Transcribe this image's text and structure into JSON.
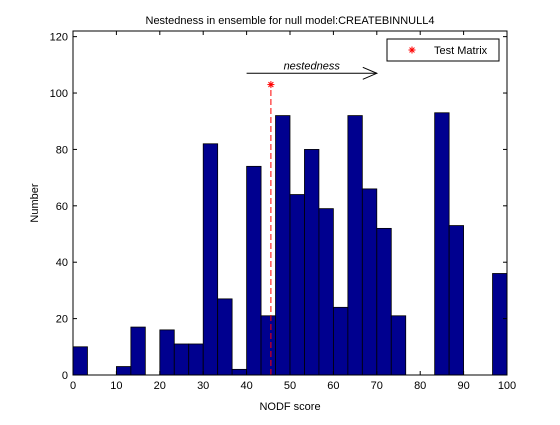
{
  "chart_data": {
    "type": "bar",
    "title": "Nestedness in ensemble for null model:CREATEBINNULL4",
    "xlabel": "NODF score",
    "ylabel": "Number",
    "xlim": [
      0,
      100
    ],
    "ylim": [
      0,
      122
    ],
    "xticks": [
      0,
      10,
      20,
      30,
      40,
      50,
      60,
      70,
      80,
      90,
      100
    ],
    "yticks": [
      0,
      20,
      40,
      60,
      80,
      100,
      120
    ],
    "bar_width": 3.33,
    "bar_color": "#00008F",
    "bars": [
      {
        "x": 1.67,
        "value": 10
      },
      {
        "x": 11.67,
        "value": 3
      },
      {
        "x": 15.0,
        "value": 17
      },
      {
        "x": 21.67,
        "value": 16
      },
      {
        "x": 25.0,
        "value": 11
      },
      {
        "x": 28.33,
        "value": 11
      },
      {
        "x": 31.67,
        "value": 82
      },
      {
        "x": 35.0,
        "value": 27
      },
      {
        "x": 38.33,
        "value": 2
      },
      {
        "x": 41.67,
        "value": 74
      },
      {
        "x": 45.0,
        "value": 21
      },
      {
        "x": 48.33,
        "value": 92
      },
      {
        "x": 51.67,
        "value": 64
      },
      {
        "x": 55.0,
        "value": 80
      },
      {
        "x": 58.33,
        "value": 59
      },
      {
        "x": 61.67,
        "value": 24
      },
      {
        "x": 65.0,
        "value": 92
      },
      {
        "x": 68.33,
        "value": 66
      },
      {
        "x": 71.67,
        "value": 52
      },
      {
        "x": 75.0,
        "value": 21
      },
      {
        "x": 85.0,
        "value": 93
      },
      {
        "x": 88.33,
        "value": 53
      },
      {
        "x": 98.33,
        "value": 36
      }
    ],
    "test_matrix": {
      "x": 45.6,
      "value": 103,
      "color": "#FF0000",
      "legend_label": "Test Matrix"
    },
    "annotation": {
      "text": "nestedness",
      "x_start": 40,
      "x_end": 70,
      "y": 107
    },
    "legend_placement": "top-right",
    "grid": false
  }
}
